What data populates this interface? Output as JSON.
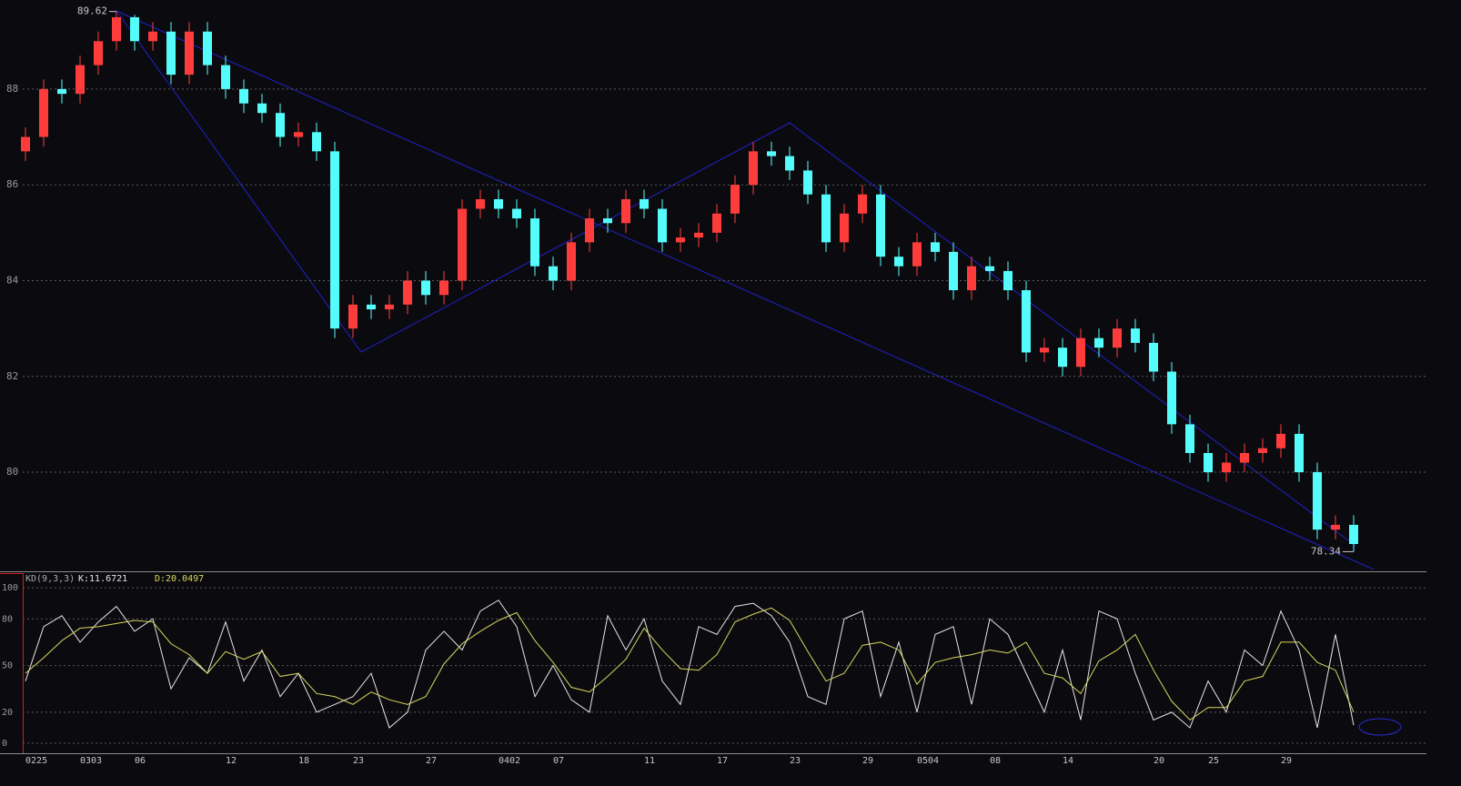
{
  "chart_data": [
    {
      "type": "candlestick",
      "open": [
        86.7,
        87.0,
        88.0,
        87.9,
        88.5,
        89.0,
        89.5,
        89.0,
        89.2,
        88.3,
        89.2,
        88.5,
        88.0,
        87.7,
        87.5,
        87.0,
        87.1,
        86.7,
        83.0,
        83.5,
        83.4,
        83.5,
        84.0,
        83.7,
        84.0,
        85.5,
        85.7,
        85.5,
        85.3,
        84.3,
        84.0,
        84.8,
        85.3,
        85.2,
        85.7,
        85.5,
        84.8,
        84.9,
        85.0,
        85.4,
        86.0,
        86.7,
        86.6,
        86.3,
        85.8,
        84.8,
        85.4,
        85.8,
        84.5,
        84.3,
        84.8,
        84.6,
        83.8,
        84.3,
        84.2,
        83.8,
        82.5,
        82.6,
        82.2,
        82.8,
        82.6,
        83.0,
        82.7,
        82.1,
        81.0,
        80.4,
        80.0,
        80.2,
        80.4,
        80.5,
        80.8,
        80.0,
        78.8,
        78.9
      ],
      "high": [
        87.2,
        88.2,
        88.2,
        88.7,
        89.2,
        89.62,
        89.55,
        89.4,
        89.4,
        89.4,
        89.4,
        88.7,
        88.2,
        87.9,
        87.7,
        87.3,
        87.3,
        86.9,
        83.7,
        83.7,
        83.7,
        84.2,
        84.2,
        84.2,
        85.7,
        85.9,
        85.9,
        85.7,
        85.5,
        84.5,
        85.0,
        85.5,
        85.5,
        85.9,
        85.9,
        85.7,
        85.1,
        85.2,
        85.6,
        86.2,
        86.9,
        86.9,
        86.8,
        86.5,
        86.0,
        85.6,
        86.0,
        86.0,
        84.7,
        85.0,
        85.0,
        84.8,
        84.5,
        84.5,
        84.4,
        84.0,
        82.8,
        82.8,
        83.0,
        83.0,
        83.2,
        83.2,
        82.9,
        82.3,
        81.2,
        80.6,
        80.4,
        80.6,
        80.7,
        81.0,
        81.0,
        80.2,
        79.1,
        79.1
      ],
      "low": [
        86.5,
        86.8,
        87.7,
        87.7,
        88.3,
        88.8,
        88.8,
        88.8,
        88.1,
        88.1,
        88.3,
        87.8,
        87.5,
        87.3,
        86.8,
        86.8,
        86.5,
        82.8,
        82.8,
        83.2,
        83.2,
        83.3,
        83.5,
        83.5,
        83.8,
        85.3,
        85.3,
        85.1,
        84.1,
        83.8,
        83.8,
        84.6,
        85.0,
        85.0,
        85.3,
        84.6,
        84.6,
        84.7,
        84.8,
        85.2,
        85.8,
        86.4,
        86.1,
        85.6,
        84.6,
        84.6,
        85.2,
        84.3,
        84.1,
        84.1,
        84.4,
        83.6,
        83.6,
        84.0,
        83.6,
        82.3,
        82.3,
        82.0,
        82.0,
        82.4,
        82.4,
        82.5,
        81.9,
        80.8,
        80.2,
        79.8,
        79.8,
        80.0,
        80.2,
        80.3,
        79.8,
        78.6,
        78.6,
        78.34
      ],
      "close": [
        87.0,
        88.0,
        87.9,
        88.5,
        89.0,
        89.5,
        89.0,
        89.2,
        88.3,
        89.2,
        88.5,
        88.0,
        87.7,
        87.5,
        87.0,
        87.1,
        86.7,
        83.0,
        83.5,
        83.4,
        83.5,
        84.0,
        83.7,
        84.0,
        85.5,
        85.7,
        85.5,
        85.3,
        84.3,
        84.0,
        84.8,
        85.3,
        85.2,
        85.7,
        85.5,
        84.8,
        84.9,
        85.0,
        85.4,
        86.0,
        86.7,
        86.6,
        86.3,
        85.8,
        84.8,
        85.4,
        85.8,
        84.5,
        84.3,
        84.8,
        84.6,
        83.8,
        84.3,
        84.2,
        83.8,
        82.5,
        82.6,
        82.2,
        82.8,
        82.6,
        83.0,
        82.7,
        82.1,
        81.0,
        80.4,
        80.0,
        80.2,
        80.4,
        80.5,
        80.8,
        80.0,
        78.8,
        78.9,
        78.5
      ],
      "up_color": "#ff3c3c",
      "down_color": "#54fcfc",
      "ylim": [
        77.93,
        89.86
      ],
      "yticks": [
        80,
        82,
        84,
        86,
        88
      ],
      "grid": true
    },
    {
      "type": "line",
      "title": "KD(9,3,3)",
      "k_text": "K:11.6721",
      "d_text": "D:20.0497",
      "categories": [
        "0225",
        null,
        null,
        "0303",
        null,
        null,
        "06",
        null,
        null,
        null,
        null,
        "12",
        null,
        null,
        null,
        "18",
        null,
        null,
        "23",
        null,
        null,
        null,
        "27",
        null,
        null,
        null,
        "0402",
        null,
        null,
        "07",
        null,
        null,
        null,
        null,
        "11",
        null,
        null,
        null,
        "17",
        null,
        null,
        null,
        "23",
        null,
        null,
        null,
        "29",
        null,
        null,
        "0504",
        null,
        null,
        null,
        "08",
        null,
        null,
        null,
        "14",
        null,
        null,
        null,
        null,
        "20",
        null,
        null,
        "25",
        null,
        null,
        null,
        "29",
        null,
        null,
        null,
        null
      ],
      "series": [
        {
          "name": "K",
          "color": "#e6e6e6",
          "values": [
            40,
            75,
            82,
            65,
            78,
            88,
            72,
            80,
            35,
            55,
            45,
            78,
            40,
            60,
            30,
            45,
            20,
            25,
            30,
            45,
            10,
            20,
            60,
            72,
            60,
            85,
            92,
            75,
            30,
            50,
            28,
            20,
            82,
            60,
            80,
            40,
            25,
            75,
            70,
            88,
            90,
            82,
            65,
            30,
            25,
            80,
            85,
            30,
            65,
            20,
            70,
            75,
            25,
            80,
            70,
            45,
            20,
            60,
            15,
            85,
            80,
            45,
            15,
            20,
            10,
            40,
            20,
            60,
            50,
            85,
            60,
            10,
            70,
            11.6721
          ]
        },
        {
          "name": "D",
          "color": "#d8d860",
          "values": [
            45,
            55,
            66,
            74,
            75,
            77,
            79,
            78,
            64,
            57,
            45,
            59,
            54,
            59,
            43,
            45,
            32,
            30,
            25,
            33,
            28,
            25,
            30,
            51,
            64,
            72,
            79,
            84,
            66,
            52,
            36,
            33,
            43,
            54,
            74,
            60,
            48,
            47,
            57,
            78,
            83,
            87,
            79,
            59,
            40,
            45,
            63,
            65,
            60,
            38,
            52,
            55,
            57,
            60,
            58,
            65,
            45,
            42,
            32,
            53,
            60,
            70,
            47,
            27,
            15,
            23,
            23,
            40,
            43,
            65,
            65,
            52,
            47,
            20.0497
          ]
        }
      ],
      "ylim": [
        -6.4,
        109.4
      ],
      "yticks": [
        0,
        20,
        50,
        80,
        100
      ],
      "grid": true
    }
  ]
}
